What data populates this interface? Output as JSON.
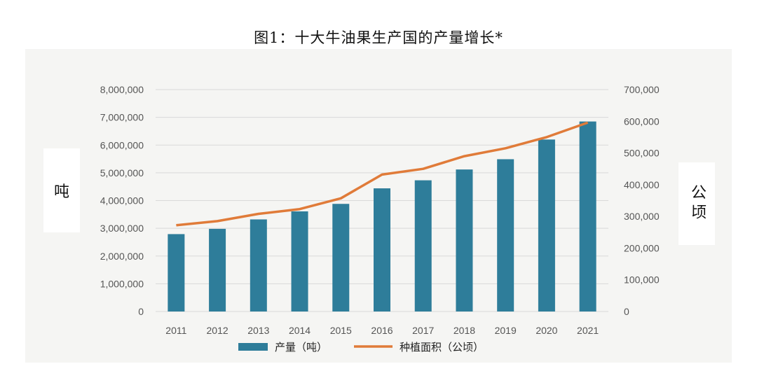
{
  "title": "图1：十大牛油果生产国的产量增长*",
  "chart_data": {
    "type": "bar+line",
    "title": "图1：十大牛油果生产国的产量增长*",
    "categories": [
      "2011",
      "2012",
      "2013",
      "2014",
      "2015",
      "2016",
      "2017",
      "2018",
      "2019",
      "2020",
      "2021"
    ],
    "series": [
      {
        "name": "产量（吨）",
        "type": "bar",
        "axis": "left",
        "color": "#2e7d9a",
        "values": [
          2790000,
          2980000,
          3320000,
          3610000,
          3880000,
          4440000,
          4730000,
          5120000,
          5490000,
          6200000,
          6850000
        ]
      },
      {
        "name": "种植面积（公顷）",
        "type": "line",
        "axis": "right",
        "color": "#e07b39",
        "values": [
          272000,
          285000,
          308000,
          323000,
          357000,
          432000,
          450000,
          490000,
          515000,
          550000,
          596000
        ]
      }
    ],
    "ylabel_left": "吨",
    "ylabel_right": "公顷",
    "ylim_left": [
      0,
      8000000
    ],
    "ylim_right": [
      0,
      700000
    ],
    "yticks_left": [
      "0",
      "1,000,000",
      "2,000,000",
      "3,000,000",
      "4,000,000",
      "5,000,000",
      "6,000,000",
      "7,000,000",
      "8,000,000"
    ],
    "yticks_right": [
      "0",
      "100,000",
      "200,000",
      "300,000",
      "400,000",
      "500,000",
      "600,000",
      "700,000"
    ],
    "grid": true,
    "legend_position": "bottom"
  }
}
